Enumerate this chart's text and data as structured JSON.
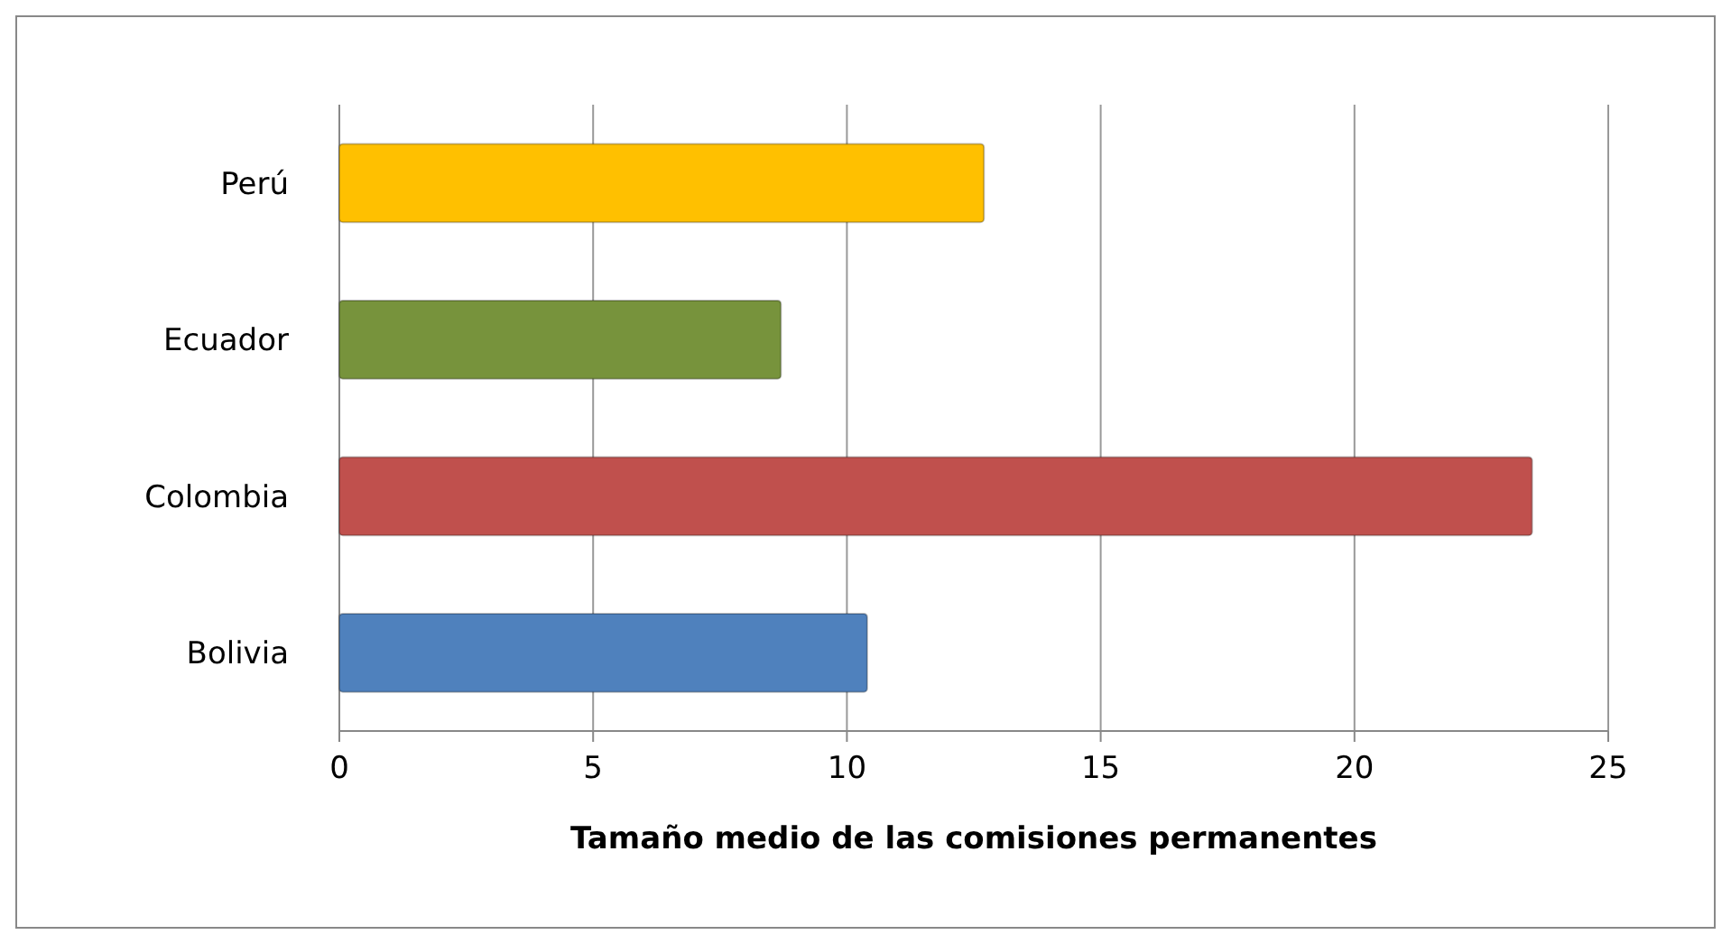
{
  "chart_data": {
    "type": "bar",
    "orientation": "horizontal",
    "xlabel": "Tamaño medio de las comisiones permanentes",
    "categories": [
      "Perú",
      "Ecuador",
      "Colombia",
      "Bolivia"
    ],
    "values": [
      12.7,
      8.7,
      23.5,
      10.4
    ],
    "colors": [
      "#ffc000",
      "#77933c",
      "#c0504d",
      "#4f81bd"
    ],
    "xlim": [
      0,
      25
    ],
    "xticks": [
      0,
      5,
      10,
      15,
      20,
      25
    ],
    "grid": "x"
  }
}
